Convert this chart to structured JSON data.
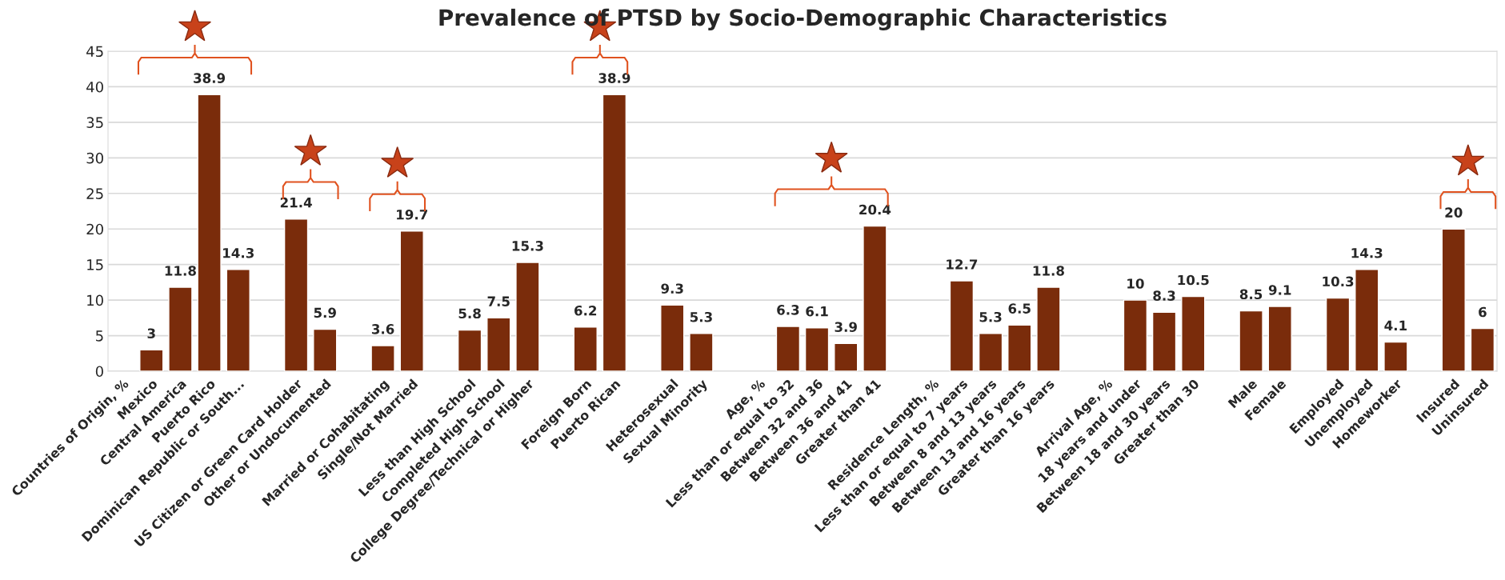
{
  "chart_data": {
    "type": "bar",
    "title": "Prevalence of PTSD by Socio-Demographic Characteristics",
    "categories": [
      "Countries of Origin, %",
      "Mexico",
      "Central America",
      "Puerto Rico",
      "Dominican Republic or South...",
      null,
      "US Citizen or Green Card Holder",
      "Other or Undocumented",
      null,
      "Married or Cohabitating",
      "Single/Not Married",
      null,
      "Less than High School",
      "Completed High School",
      "College Degree/Technical or Higher",
      null,
      "Foreign Born",
      "Puerto Rican",
      null,
      "Heterosexual",
      "Sexual Minority",
      null,
      "Age, %",
      "Less than or equal to 32",
      "Between 32 and 36",
      "Between 36 and 41",
      "Greater than 41",
      null,
      "Residence Length, %",
      "Less than or equal to 7 years",
      "Between 8 and 13 years",
      "Between 13 and 16 years",
      "Greater than 16 years",
      null,
      "Arrival Age, %",
      "18 years and under",
      "Between 18 and 30 years",
      "Greater than 30",
      null,
      "Male",
      "Female",
      null,
      "Employed",
      "Unemployed",
      "Homeworker",
      null,
      "Insured",
      "Uninsured"
    ],
    "values": [
      null,
      3,
      11.8,
      38.9,
      14.3,
      null,
      21.4,
      5.9,
      null,
      3.6,
      19.7,
      null,
      5.8,
      7.5,
      15.3,
      null,
      6.2,
      38.9,
      null,
      9.3,
      5.3,
      null,
      null,
      6.3,
      6.1,
      3.9,
      20.4,
      null,
      null,
      12.7,
      5.3,
      6.5,
      11.8,
      null,
      null,
      10,
      8.3,
      10.5,
      null,
      8.5,
      9.1,
      null,
      10.3,
      14.3,
      4.1,
      null,
      20,
      6
    ],
    "color": "#7a2c0b",
    "ylim": [
      0,
      45
    ],
    "yticks": [
      0,
      5,
      10,
      15,
      20,
      25,
      30,
      35,
      40,
      45
    ],
    "grid": "y",
    "data_labels": true
  }
}
